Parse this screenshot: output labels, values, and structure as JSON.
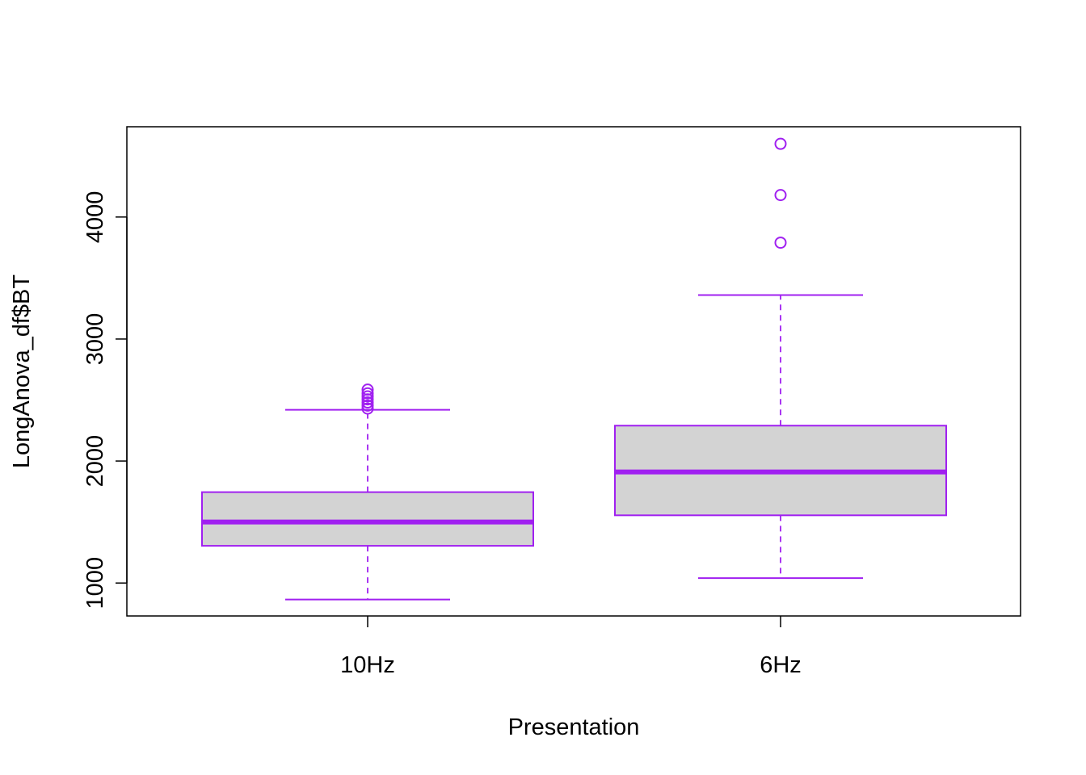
{
  "chart_data": {
    "type": "boxplot",
    "title": "",
    "xlabel": "Presentation",
    "ylabel": "LongAnova_df$BT",
    "categories": [
      "10Hz",
      "6Hz"
    ],
    "ylim": [
      730,
      4740
    ],
    "yticks": [
      "1000",
      "2000",
      "3000",
      "4000"
    ],
    "grid": false,
    "legend": "none",
    "colors": {
      "box_border": "#A020F0",
      "box_fill": "#D3D3D3",
      "axis": "#000000"
    },
    "boxes": [
      {
        "category": "10Hz",
        "min": 865,
        "q1": 1305,
        "median": 1500,
        "q3": 1745,
        "max": 2420,
        "outliers": [
          2430,
          2455,
          2480,
          2505,
          2530,
          2555,
          2585
        ]
      },
      {
        "category": "6Hz",
        "min": 1040,
        "q1": 1555,
        "median": 1910,
        "q3": 2290,
        "max": 3360,
        "outliers": [
          3790,
          4180,
          4600
        ]
      }
    ]
  }
}
